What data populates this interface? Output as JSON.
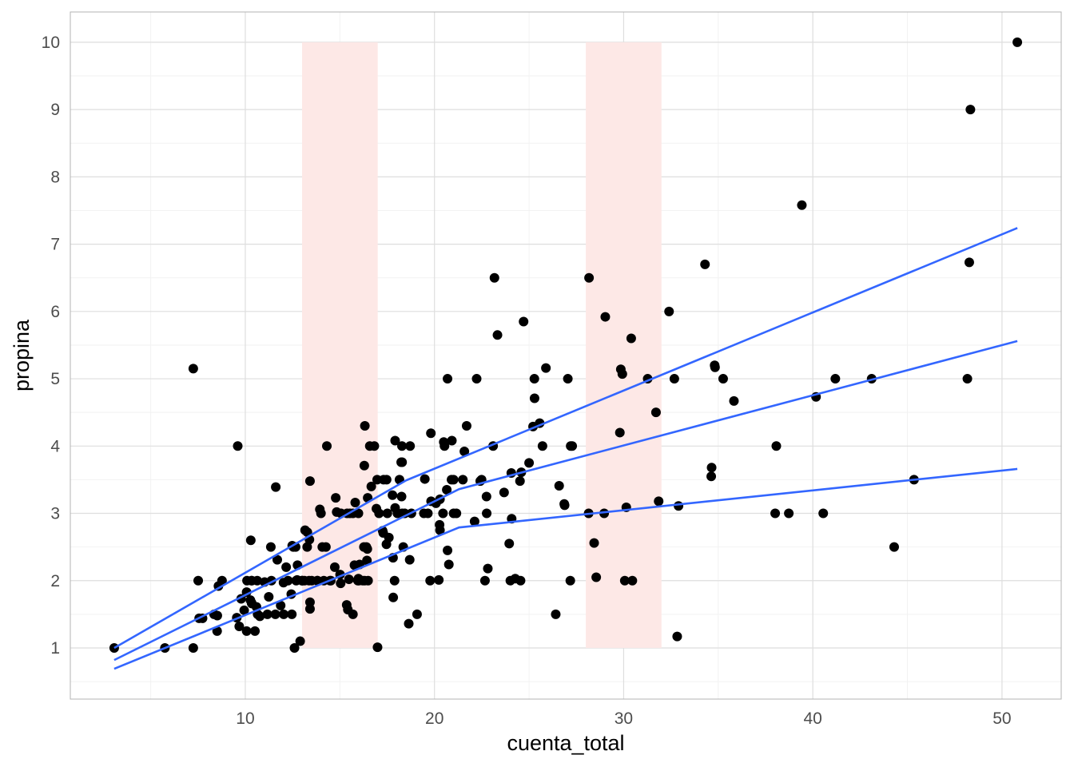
{
  "chart_data": {
    "type": "scatter",
    "title": "",
    "xlabel": "cuenta_total",
    "ylabel": "propina",
    "xlim": [
      0.75,
      53.13
    ],
    "ylim": [
      0.24,
      10.45
    ],
    "x_ticks": [
      10,
      20,
      30,
      40,
      50
    ],
    "y_ticks": [
      1,
      2,
      3,
      4,
      5,
      6,
      7,
      8,
      9,
      10
    ],
    "x_tick_labels": [
      "10",
      "20",
      "30",
      "40",
      "50"
    ],
    "y_tick_labels": [
      "1",
      "2",
      "3",
      "4",
      "5",
      "6",
      "7",
      "8",
      "9",
      "10"
    ],
    "grid": true,
    "colors": {
      "points": "#000000",
      "lines": "#3366ff",
      "bands": "#fde8e6"
    },
    "bands": [
      {
        "x": [
          13,
          17
        ],
        "y": [
          1,
          10
        ]
      },
      {
        "x": [
          28,
          32
        ],
        "y": [
          1,
          10
        ]
      }
    ],
    "lines": [
      {
        "name": "upper",
        "points": [
          [
            3.07,
            1.0
          ],
          [
            18.5,
            3.49
          ],
          [
            50.81,
            7.24
          ]
        ]
      },
      {
        "name": "middle",
        "points": [
          [
            3.07,
            0.82
          ],
          [
            21.3,
            3.36
          ],
          [
            50.81,
            5.56
          ]
        ]
      },
      {
        "name": "lower",
        "points": [
          [
            3.07,
            0.69
          ],
          [
            21.3,
            2.79
          ],
          [
            50.81,
            3.66
          ]
        ]
      }
    ],
    "points": [
      [
        16.99,
        1.01
      ],
      [
        10.34,
        1.66
      ],
      [
        21.01,
        3.5
      ],
      [
        23.68,
        3.31
      ],
      [
        24.59,
        3.61
      ],
      [
        25.29,
        4.71
      ],
      [
        8.77,
        2.0
      ],
      [
        26.88,
        3.12
      ],
      [
        15.04,
        1.96
      ],
      [
        14.78,
        3.23
      ],
      [
        10.27,
        1.71
      ],
      [
        35.26,
        5.0
      ],
      [
        15.42,
        1.57
      ],
      [
        18.43,
        3.0
      ],
      [
        14.83,
        3.02
      ],
      [
        21.58,
        3.92
      ],
      [
        10.33,
        1.67
      ],
      [
        16.29,
        3.71
      ],
      [
        16.97,
        3.5
      ],
      [
        20.65,
        3.35
      ],
      [
        17.92,
        4.08
      ],
      [
        20.29,
        2.75
      ],
      [
        15.77,
        2.23
      ],
      [
        39.42,
        7.58
      ],
      [
        19.82,
        3.18
      ],
      [
        17.81,
        2.34
      ],
      [
        13.37,
        2.0
      ],
      [
        12.69,
        2.0
      ],
      [
        21.7,
        4.3
      ],
      [
        19.65,
        3.0
      ],
      [
        9.55,
        1.45
      ],
      [
        18.35,
        2.5
      ],
      [
        15.06,
        3.0
      ],
      [
        20.69,
        2.45
      ],
      [
        17.78,
        3.27
      ],
      [
        24.06,
        3.6
      ],
      [
        16.31,
        2.0
      ],
      [
        16.93,
        3.07
      ],
      [
        18.69,
        2.31
      ],
      [
        31.27,
        5.0
      ],
      [
        16.04,
        2.24
      ],
      [
        17.46,
        2.54
      ],
      [
        13.94,
        3.06
      ],
      [
        9.68,
        1.32
      ],
      [
        30.4,
        5.6
      ],
      [
        18.29,
        3.0
      ],
      [
        22.23,
        5.0
      ],
      [
        32.4,
        6.0
      ],
      [
        28.55,
        2.05
      ],
      [
        18.04,
        3.0
      ],
      [
        12.54,
        2.5
      ],
      [
        10.29,
        2.6
      ],
      [
        34.81,
        5.2
      ],
      [
        9.94,
        1.56
      ],
      [
        25.56,
        4.34
      ],
      [
        19.49,
        3.51
      ],
      [
        38.01,
        3.0
      ],
      [
        26.41,
        1.5
      ],
      [
        11.24,
        1.76
      ],
      [
        48.27,
        6.73
      ],
      [
        20.29,
        3.21
      ],
      [
        13.81,
        2.0
      ],
      [
        11.02,
        1.98
      ],
      [
        18.29,
        3.76
      ],
      [
        17.59,
        2.64
      ],
      [
        20.08,
        3.15
      ],
      [
        16.45,
        2.47
      ],
      [
        3.07,
        1.0
      ],
      [
        20.23,
        2.01
      ],
      [
        15.01,
        2.09
      ],
      [
        12.02,
        1.97
      ],
      [
        17.07,
        3.0
      ],
      [
        26.86,
        3.14
      ],
      [
        25.28,
        5.0
      ],
      [
        14.73,
        2.2
      ],
      [
        10.51,
        1.25
      ],
      [
        17.92,
        3.08
      ],
      [
        27.2,
        4.0
      ],
      [
        22.76,
        3.0
      ],
      [
        17.29,
        2.71
      ],
      [
        19.44,
        3.0
      ],
      [
        16.66,
        3.4
      ],
      [
        10.07,
        1.83
      ],
      [
        32.68,
        5.0
      ],
      [
        15.98,
        2.03
      ],
      [
        34.83,
        5.17
      ],
      [
        13.03,
        2.0
      ],
      [
        18.28,
        4.0
      ],
      [
        24.71,
        5.85
      ],
      [
        21.16,
        3.0
      ],
      [
        28.97,
        3.0
      ],
      [
        22.49,
        3.5
      ],
      [
        5.75,
        1.0
      ],
      [
        16.32,
        4.3
      ],
      [
        22.75,
        3.25
      ],
      [
        40.17,
        4.73
      ],
      [
        27.28,
        4.0
      ],
      [
        12.03,
        1.5
      ],
      [
        21.01,
        3.0
      ],
      [
        12.46,
        1.5
      ],
      [
        11.35,
        2.5
      ],
      [
        15.38,
        3.0
      ],
      [
        44.3,
        2.5
      ],
      [
        22.42,
        3.48
      ],
      [
        20.92,
        4.08
      ],
      [
        15.36,
        1.64
      ],
      [
        20.49,
        4.06
      ],
      [
        25.21,
        4.29
      ],
      [
        18.24,
        3.76
      ],
      [
        14.31,
        4.0
      ],
      [
        14.0,
        3.0
      ],
      [
        7.25,
        1.0
      ],
      [
        38.07,
        4.0
      ],
      [
        23.95,
        2.55
      ],
      [
        25.71,
        4.0
      ],
      [
        17.31,
        3.5
      ],
      [
        29.93,
        5.07
      ],
      [
        10.65,
        1.5
      ],
      [
        12.43,
        1.8
      ],
      [
        24.08,
        2.92
      ],
      [
        11.69,
        2.31
      ],
      [
        13.42,
        1.68
      ],
      [
        14.26,
        2.5
      ],
      [
        15.95,
        2.0
      ],
      [
        12.48,
        2.52
      ],
      [
        29.8,
        4.2
      ],
      [
        8.52,
        1.48
      ],
      [
        14.52,
        2.0
      ],
      [
        11.38,
        2.0
      ],
      [
        22.82,
        2.18
      ],
      [
        19.08,
        1.5
      ],
      [
        20.27,
        2.83
      ],
      [
        11.17,
        1.5
      ],
      [
        12.26,
        2.0
      ],
      [
        18.26,
        3.25
      ],
      [
        8.51,
        1.25
      ],
      [
        10.33,
        2.0
      ],
      [
        14.15,
        2.0
      ],
      [
        16.0,
        2.0
      ],
      [
        13.16,
        2.75
      ],
      [
        17.47,
        3.5
      ],
      [
        34.3,
        6.7
      ],
      [
        41.19,
        5.0
      ],
      [
        27.05,
        5.0
      ],
      [
        16.43,
        2.3
      ],
      [
        8.35,
        1.5
      ],
      [
        18.64,
        1.36
      ],
      [
        11.87,
        1.63
      ],
      [
        9.78,
        1.73
      ],
      [
        7.51,
        2.0
      ],
      [
        14.07,
        2.5
      ],
      [
        13.13,
        2.0
      ],
      [
        17.26,
        2.74
      ],
      [
        24.55,
        2.0
      ],
      [
        19.77,
        2.0
      ],
      [
        29.85,
        5.14
      ],
      [
        48.17,
        5.0
      ],
      [
        25.0,
        3.75
      ],
      [
        13.39,
        2.61
      ],
      [
        16.49,
        2.0
      ],
      [
        21.5,
        3.5
      ],
      [
        12.66,
        2.5
      ],
      [
        16.21,
        2.0
      ],
      [
        13.81,
        2.0
      ],
      [
        17.51,
        3.0
      ],
      [
        24.52,
        3.48
      ],
      [
        20.76,
        2.24
      ],
      [
        31.71,
        4.5
      ],
      [
        10.59,
        1.61
      ],
      [
        10.63,
        2.0
      ],
      [
        50.81,
        10.0
      ],
      [
        15.81,
        3.16
      ],
      [
        7.25,
        5.15
      ],
      [
        31.85,
        3.18
      ],
      [
        16.82,
        4.0
      ],
      [
        32.9,
        3.11
      ],
      [
        17.89,
        2.0
      ],
      [
        14.48,
        2.0
      ],
      [
        9.6,
        4.0
      ],
      [
        34.63,
        3.55
      ],
      [
        34.65,
        3.68
      ],
      [
        23.33,
        5.65
      ],
      [
        45.35,
        3.5
      ],
      [
        23.17,
        6.5
      ],
      [
        40.55,
        3.0
      ],
      [
        20.69,
        5.0
      ],
      [
        20.9,
        3.5
      ],
      [
        30.46,
        2.0
      ],
      [
        18.15,
        3.5
      ],
      [
        23.1,
        4.0
      ],
      [
        15.69,
        1.5
      ],
      [
        19.81,
        4.19
      ],
      [
        28.44,
        2.56
      ],
      [
        15.48,
        2.02
      ],
      [
        16.58,
        4.0
      ],
      [
        7.56,
        1.44
      ],
      [
        10.34,
        2.0
      ],
      [
        43.11,
        5.0
      ],
      [
        13.0,
        2.0
      ],
      [
        13.51,
        2.0
      ],
      [
        18.71,
        4.0
      ],
      [
        12.74,
        2.01
      ],
      [
        13.0,
        2.0
      ],
      [
        16.4,
        2.5
      ],
      [
        20.53,
        4.0
      ],
      [
        16.47,
        3.23
      ],
      [
        26.59,
        3.41
      ],
      [
        38.73,
        3.0
      ],
      [
        24.27,
        2.03
      ],
      [
        12.76,
        2.23
      ],
      [
        30.06,
        2.0
      ],
      [
        25.89,
        5.16
      ],
      [
        48.33,
        9.0
      ],
      [
        13.27,
        2.5
      ],
      [
        28.17,
        6.5
      ],
      [
        12.9,
        1.1
      ],
      [
        28.15,
        3.0
      ],
      [
        11.59,
        1.5
      ],
      [
        7.74,
        1.44
      ],
      [
        30.14,
        3.09
      ],
      [
        12.16,
        2.2
      ],
      [
        13.42,
        3.48
      ],
      [
        8.58,
        1.92
      ],
      [
        15.98,
        3.0
      ],
      [
        13.42,
        1.58
      ],
      [
        16.27,
        2.5
      ],
      [
        10.09,
        2.0
      ],
      [
        20.45,
        3.0
      ],
      [
        13.28,
        2.72
      ],
      [
        22.12,
        2.88
      ],
      [
        24.01,
        2.0
      ],
      [
        15.69,
        3.0
      ],
      [
        11.61,
        3.39
      ],
      [
        10.77,
        1.47
      ],
      [
        15.53,
        3.0
      ],
      [
        10.07,
        1.25
      ],
      [
        12.6,
        1.0
      ],
      [
        32.83,
        1.17
      ],
      [
        35.83,
        4.67
      ],
      [
        29.03,
        5.92
      ],
      [
        27.18,
        2.0
      ],
      [
        22.67,
        2.0
      ],
      [
        17.82,
        1.75
      ],
      [
        18.78,
        3.0
      ]
    ]
  }
}
